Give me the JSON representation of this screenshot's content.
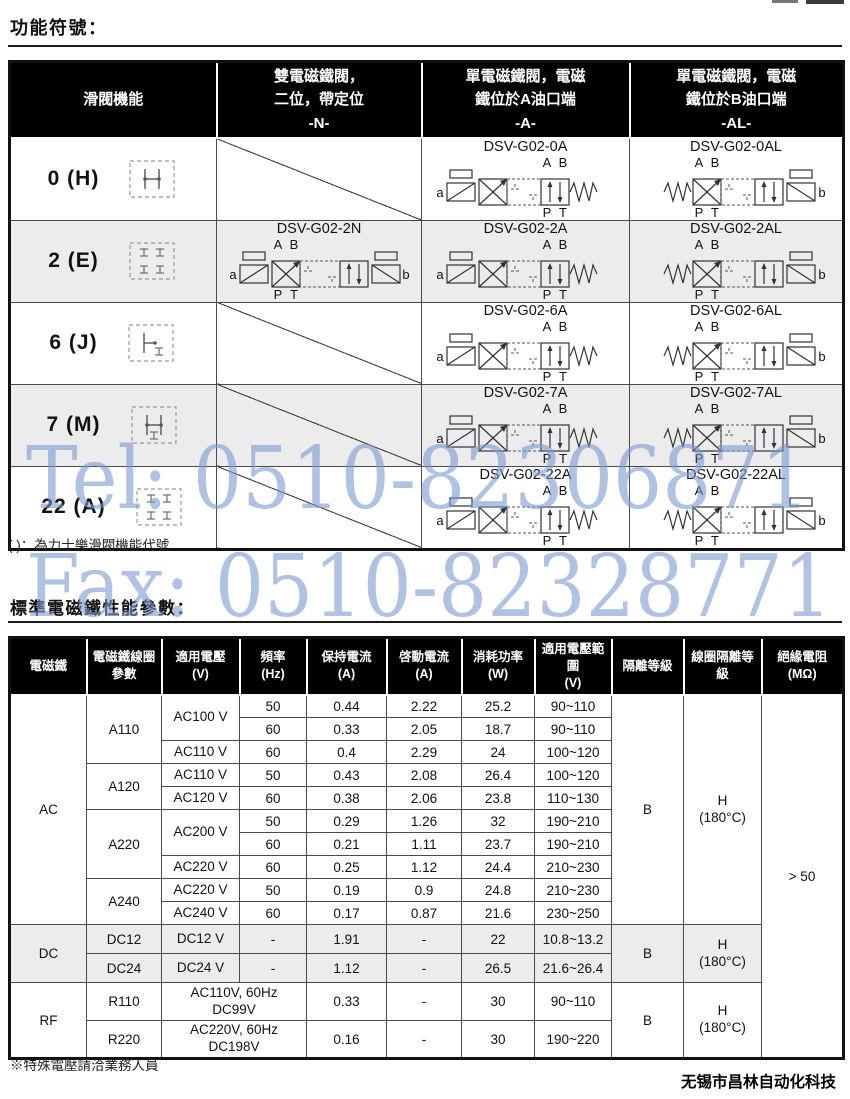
{
  "page": {
    "title1": "功能符號：",
    "note1": "( )：為力士樂滑閥機能代號",
    "title2": "標準電磁鐵性能參數：",
    "footnote": "※特殊電壓請洽業務人員",
    "company": "无锡市昌林自动化科技",
    "watermark_tel": "Tel: 0510-82306871",
    "watermark_fax": "Fax: 0510-82328771",
    "watermark_color": "#7b9ad1",
    "header_bg": "#000000",
    "row_shade": "#ececec"
  },
  "function_table": {
    "headers": [
      "滑閥機能",
      "雙電磁鐵閥，\n二位，帶定位\n-N-",
      "單電磁鐵閥，電磁\n鐵位於A油口端\n-A-",
      "單電磁鐵閥，電磁\n鐵位於B油口端\n-AL-"
    ],
    "ports": {
      "A": "A",
      "B": "B",
      "P": "P",
      "T": "T",
      "a": "a",
      "b": "b"
    },
    "rows": [
      {
        "code": "0 (H)",
        "spool": "H",
        "n": null,
        "a": "DSV-G02-0A",
        "al": "DSV-G02-0AL",
        "shade": false
      },
      {
        "code": "2 (E)",
        "spool": "E",
        "n": "DSV-G02-2N",
        "a": "DSV-G02-2A",
        "al": "DSV-G02-2AL",
        "shade": true
      },
      {
        "code": "6 (J)",
        "spool": "J",
        "n": null,
        "a": "DSV-G02-6A",
        "al": "DSV-G02-6AL",
        "shade": false
      },
      {
        "code": "7 (M)",
        "spool": "M",
        "n": null,
        "a": "DSV-G02-7A",
        "al": "DSV-G02-7AL",
        "shade": true
      },
      {
        "code": "22 (A)",
        "spool": "A22",
        "n": null,
        "a": "DSV-G02-22A",
        "al": "DSV-G02-22AL",
        "shade": false
      }
    ]
  },
  "solenoid_table": {
    "headers": [
      {
        "label": "電磁鐵",
        "unit": ""
      },
      {
        "label": "電磁鐵線圈參數",
        "unit": ""
      },
      {
        "label": "適用電壓",
        "unit": "(V)"
      },
      {
        "label": "頻率",
        "unit": "(Hz)"
      },
      {
        "label": "保持電流",
        "unit": "(A)"
      },
      {
        "label": "啓動電流",
        "unit": "(A)"
      },
      {
        "label": "消耗功率",
        "unit": "(W)"
      },
      {
        "label": "適用電壓範圍",
        "unit": "(V)"
      },
      {
        "label": "隔離等級",
        "unit": ""
      },
      {
        "label": "線圈隔離等級",
        "unit": ""
      },
      {
        "label": "絕緣電阻",
        "unit": "(MΩ)"
      }
    ],
    "insulation": "> 50",
    "groups": [
      {
        "name": "AC",
        "shade": false,
        "iso_class": "B",
        "coil_class": "H\n(180°C)",
        "coils": [
          {
            "name": "A110",
            "rows": [
              {
                "voltage": "AC100 V",
                "vspan": 2,
                "freq": "50",
                "hold": "0.44",
                "inrush": "2.22",
                "power": "25.2",
                "range": "90~110"
              },
              {
                "freq": "60",
                "hold": "0.33",
                "inrush": "2.05",
                "power": "18.7",
                "range": "90~110"
              },
              {
                "voltage": "AC110 V",
                "freq": "60",
                "hold": "0.4",
                "inrush": "2.29",
                "power": "24",
                "range": "100~120"
              }
            ]
          },
          {
            "name": "A120",
            "rows": [
              {
                "voltage": "AC110 V",
                "freq": "50",
                "hold": "0.43",
                "inrush": "2.08",
                "power": "26.4",
                "range": "100~120"
              },
              {
                "voltage": "AC120 V",
                "freq": "60",
                "hold": "0.38",
                "inrush": "2.06",
                "power": "23.8",
                "range": "110~130"
              }
            ]
          },
          {
            "name": "A220",
            "rows": [
              {
                "voltage": "AC200 V",
                "vspan": 2,
                "freq": "50",
                "hold": "0.29",
                "inrush": "1.26",
                "power": "32",
                "range": "190~210"
              },
              {
                "freq": "60",
                "hold": "0.21",
                "inrush": "1.11",
                "power": "23.7",
                "range": "190~210"
              },
              {
                "voltage": "AC220 V",
                "freq": "60",
                "hold": "0.25",
                "inrush": "1.12",
                "power": "24.4",
                "range": "210~230"
              }
            ]
          },
          {
            "name": "A240",
            "rows": [
              {
                "voltage": "AC220 V",
                "freq": "50",
                "hold": "0.19",
                "inrush": "0.9",
                "power": "24.8",
                "range": "210~230"
              },
              {
                "voltage": "AC240 V",
                "freq": "60",
                "hold": "0.17",
                "inrush": "0.87",
                "power": "21.6",
                "range": "230~250"
              }
            ]
          }
        ]
      },
      {
        "name": "DC",
        "shade": true,
        "iso_class": "B",
        "coil_class": "H\n(180°C)",
        "coils": [
          {
            "name": "DC12",
            "rows": [
              {
                "voltage": "DC12 V",
                "freq": "-",
                "hold": "1.91",
                "inrush": "-",
                "power": "22",
                "range": "10.8~13.2"
              }
            ]
          },
          {
            "name": "DC24",
            "rows": [
              {
                "voltage": "DC24 V",
                "freq": "-",
                "hold": "1.12",
                "inrush": "-",
                "power": "26.5",
                "range": "21.6~26.4"
              }
            ]
          }
        ]
      },
      {
        "name": "RF",
        "shade": false,
        "iso_class": "B",
        "coil_class": "H\n(180°C)",
        "coils": [
          {
            "name": "R110",
            "rows": [
              {
                "voltage": "AC110V, 60Hz\nDC99V",
                "vcolspan": 2,
                "hold": "0.33",
                "inrush": "-",
                "power": "30",
                "range": "90~110"
              }
            ]
          },
          {
            "name": "R220",
            "rows": [
              {
                "voltage": "AC220V, 60Hz\nDC198V",
                "vcolspan": 2,
                "hold": "0.16",
                "inrush": "-",
                "power": "30",
                "range": "190~220"
              }
            ]
          }
        ]
      }
    ]
  }
}
